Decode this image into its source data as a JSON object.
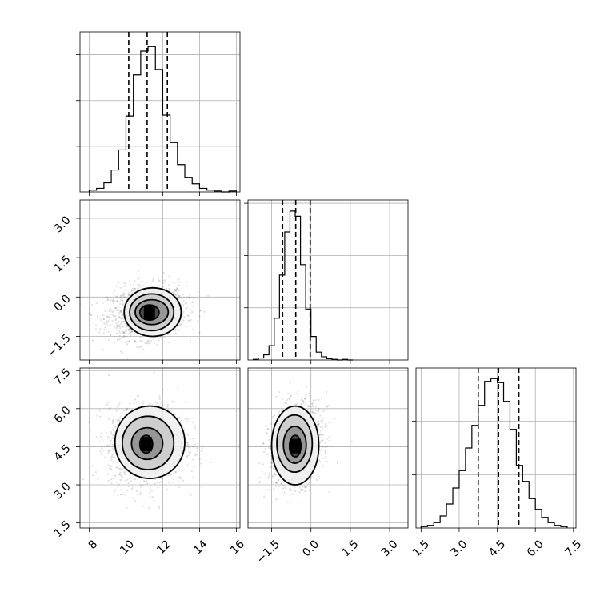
{
  "chart_data": {
    "type": "corner",
    "grid": true,
    "parameters": [
      {
        "range": [
          7.5,
          16.2
        ],
        "ticks": [
          8,
          10,
          12,
          14,
          16
        ],
        "tick_labels": [
          "8",
          "10",
          "12",
          "14",
          "16"
        ],
        "quantiles": [
          10.15,
          11.15,
          12.25
        ],
        "hist": {
          "edges": [
            8.0,
            8.4,
            8.8,
            9.2,
            9.6,
            10.0,
            10.4,
            10.8,
            11.2,
            11.6,
            12.0,
            12.4,
            12.8,
            13.2,
            13.6,
            14.0,
            14.4,
            14.8,
            15.2,
            15.6,
            16.0
          ],
          "counts": [
            2,
            4,
            10,
            24,
            46,
            83,
            128,
            154,
            159,
            134,
            84,
            54,
            30,
            16,
            9,
            4,
            2,
            1,
            0,
            1
          ],
          "ymax": 175
        }
      },
      {
        "range": [
          -2.4,
          3.7
        ],
        "ticks": [
          -1.5,
          0.0,
          1.5,
          3.0
        ],
        "tick_labels": [
          "−1.5",
          "0.0",
          "1.5",
          "3.0"
        ],
        "quantiles": [
          -1.08,
          -0.58,
          -0.03
        ],
        "hist": {
          "edges": [
            -2.2,
            -2.0,
            -1.8,
            -1.6,
            -1.4,
            -1.2,
            -1.0,
            -0.8,
            -0.6,
            -0.4,
            -0.2,
            0.0,
            0.2,
            0.4,
            0.6,
            0.8,
            1.0,
            1.2,
            1.4,
            1.6
          ],
          "counts": [
            1,
            3,
            8,
            22,
            64,
            130,
            196,
            228,
            220,
            146,
            78,
            36,
            12,
            5,
            2,
            1,
            0,
            1,
            0
          ],
          "ymax": 245
        }
      },
      {
        "range": [
          1.3,
          7.6
        ],
        "ticks": [
          1.5,
          3.0,
          4.5,
          6.0,
          7.5
        ],
        "tick_labels": [
          "1.5",
          "3.0",
          "4.5",
          "6.0",
          "7.5"
        ],
        "quantiles": [
          3.75,
          4.55,
          5.35
        ],
        "hist": {
          "edges": [
            1.5,
            1.75,
            2.0,
            2.25,
            2.5,
            2.75,
            3.0,
            3.25,
            3.5,
            3.75,
            4.0,
            4.25,
            4.5,
            4.75,
            5.0,
            5.25,
            5.5,
            5.75,
            6.0,
            6.25,
            6.5,
            6.75,
            7.0,
            7.25
          ],
          "counts": [
            1,
            2,
            4,
            9,
            18,
            30,
            43,
            60,
            77,
            92,
            110,
            112,
            109,
            95,
            74,
            47,
            35,
            22,
            14,
            8,
            4,
            2,
            1
          ],
          "ymax": 120
        }
      }
    ],
    "pairs": [
      {
        "x_param": 0,
        "y_param": 1,
        "corr": 0.15,
        "x_stats": [
          11.15,
          1.05
        ],
        "y_stats": [
          -0.58,
          0.5
        ],
        "contour_levels": [
          {
            "x": [
              9.9,
              13.0
            ],
            "y": [
              -1.5,
              0.35
            ]
          },
          {
            "x": [
              10.2,
              12.6
            ],
            "y": [
              -1.28,
              0.12
            ]
          },
          {
            "x": [
              10.5,
              12.3
            ],
            "y": [
              -1.05,
              -0.1
            ]
          },
          {
            "x": [
              10.75,
              11.8
            ],
            "y": [
              -0.88,
              -0.3
            ]
          }
        ]
      },
      {
        "x_param": 0,
        "y_param": 2,
        "corr": 0.05,
        "x_stats": [
          11.15,
          1.05
        ],
        "y_stats": [
          4.55,
          0.8
        ],
        "contour_levels": [
          {
            "x": [
              9.4,
              13.2
            ],
            "y": [
              3.25,
              6.1
            ]
          },
          {
            "x": [
              9.8,
              12.6
            ],
            "y": [
              3.6,
              5.7
            ]
          },
          {
            "x": [
              10.3,
              12.0
            ],
            "y": [
              4.0,
              5.25
            ]
          },
          {
            "x": [
              10.75,
              11.45
            ],
            "y": [
              4.25,
              4.95
            ]
          }
        ]
      },
      {
        "x_param": 1,
        "y_param": 2,
        "corr": 0.25,
        "x_stats": [
          -0.58,
          0.5
        ],
        "y_stats": [
          4.55,
          0.8
        ],
        "contour_levels": [
          {
            "x": [
              -1.5,
              0.3
            ],
            "y": [
              3.0,
              6.1
            ]
          },
          {
            "x": [
              -1.3,
              0.05
            ],
            "y": [
              3.5,
              5.75
            ]
          },
          {
            "x": [
              -1.05,
              -0.18
            ],
            "y": [
              3.85,
              5.3
            ]
          },
          {
            "x": [
              -0.82,
              -0.38
            ],
            "y": [
              4.1,
              4.95
            ]
          }
        ]
      }
    ]
  }
}
